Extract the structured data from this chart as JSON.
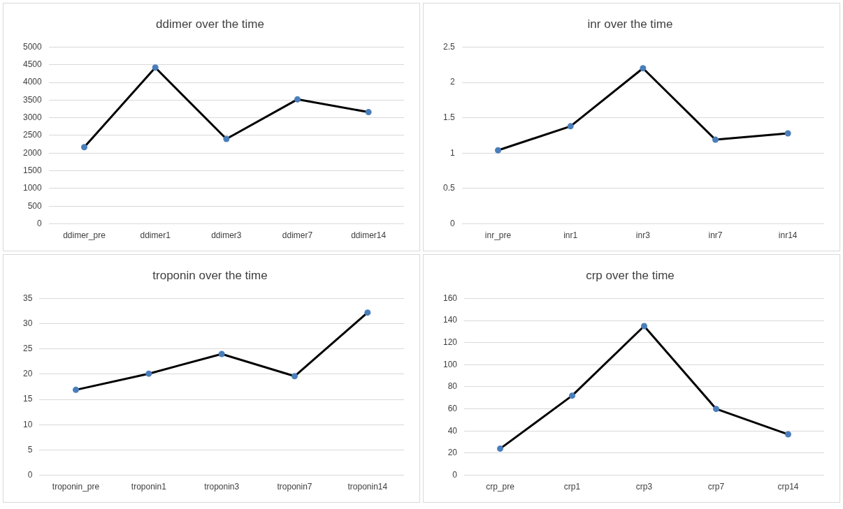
{
  "chart_data": [
    {
      "type": "line",
      "title": "ddimer over the time",
      "categories": [
        "ddimer_pre",
        "ddimer1",
        "ddimer3",
        "ddimer7",
        "ddimer14"
      ],
      "ylim": [
        0,
        5000
      ],
      "yticks": [
        0,
        500,
        1000,
        1500,
        2000,
        2500,
        3000,
        3500,
        4000,
        4500,
        5000
      ],
      "grid": "y",
      "legend": false,
      "series": [
        {
          "marker": "none",
          "color": "#000000",
          "values": [
            2170,
            4420,
            2400,
            3520,
            3160
          ]
        },
        {
          "type": "scatter",
          "marker": "circle",
          "color": "#4a7ebb",
          "values": [
            2170,
            4420,
            2400,
            3520,
            3160
          ]
        }
      ]
    },
    {
      "type": "line",
      "title": "inr over the time",
      "categories": [
        "inr_pre",
        "inr1",
        "inr3",
        "inr7",
        "inr14"
      ],
      "ylim": [
        0,
        2.5
      ],
      "yticks": [
        0,
        0.5,
        1,
        1.5,
        2,
        2.5
      ],
      "grid": "y",
      "legend": false,
      "series": [
        {
          "marker": "none",
          "color": "#000000",
          "values": [
            1.04,
            1.38,
            2.2,
            1.19,
            1.28
          ]
        },
        {
          "type": "scatter",
          "marker": "circle",
          "color": "#4a7ebb",
          "values": [
            1.04,
            1.38,
            2.2,
            1.19,
            1.28
          ]
        }
      ]
    },
    {
      "type": "line",
      "title": "troponin over the time",
      "categories": [
        "troponin_pre",
        "troponin1",
        "troponin3",
        "troponin7",
        "troponin14"
      ],
      "ylim": [
        0,
        35
      ],
      "yticks": [
        0,
        5,
        10,
        15,
        20,
        25,
        30,
        35
      ],
      "grid": "y",
      "legend": false,
      "series": [
        {
          "marker": "none",
          "color": "#000000",
          "values": [
            16.9,
            20.1,
            24.0,
            19.6,
            32.2
          ]
        },
        {
          "type": "scatter",
          "marker": "circle",
          "color": "#4a7ebb",
          "values": [
            16.9,
            20.1,
            24.0,
            19.6,
            32.2
          ]
        }
      ]
    },
    {
      "type": "line",
      "title": "crp over the time",
      "categories": [
        "crp_pre",
        "crp1",
        "crp3",
        "crp7",
        "crp14"
      ],
      "ylim": [
        0,
        160
      ],
      "yticks": [
        0,
        20,
        40,
        60,
        80,
        100,
        120,
        140,
        160
      ],
      "grid": "y",
      "legend": false,
      "series": [
        {
          "marker": "none",
          "color": "#000000",
          "values": [
            24,
            72,
            135,
            60,
            37
          ]
        },
        {
          "type": "scatter",
          "marker": "circle",
          "color": "#4a7ebb",
          "values": [
            24,
            72,
            135,
            60,
            37
          ]
        }
      ]
    }
  ]
}
